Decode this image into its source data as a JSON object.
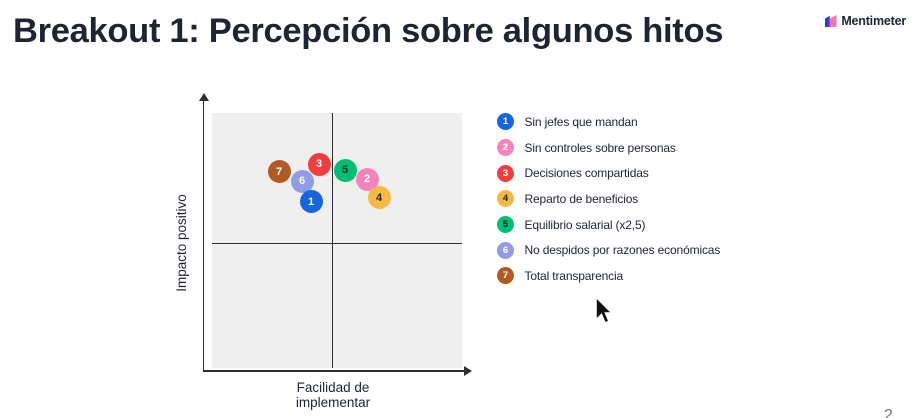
{
  "title": "Breakout 1: Percepción sobre algunos hitos",
  "brand": {
    "name": "Mentimeter"
  },
  "page_number": "2",
  "chart_data": {
    "type": "scatter",
    "title": "Breakout 1: Percepción sobre algunos hitos",
    "xlabel": "Facilidad de implementar",
    "ylabel": "Impacto positivo",
    "xlim": [
      0,
      1
    ],
    "ylim": [
      0,
      1
    ],
    "grid": "quadrant",
    "legend_position": "right",
    "points": [
      {
        "id": 1,
        "label": "Sin jefes que mandan",
        "x": 0.396,
        "y": 0.651,
        "color": "#1665e0",
        "number_color": "#ffffff",
        "z": 4
      },
      {
        "id": 2,
        "label": "Sin controles sobre personas",
        "x": 0.62,
        "y": 0.741,
        "color": "#f584be",
        "number_color": "#ffffff",
        "z": 5
      },
      {
        "id": 3,
        "label": "Decisiones compartidas",
        "x": 0.428,
        "y": 0.8,
        "color": "#f23d3d",
        "number_color": "#ffffff",
        "z": 1
      },
      {
        "id": 4,
        "label": "Reparto de beneficios",
        "x": 0.668,
        "y": 0.667,
        "color": "#f6b944",
        "number_color": "#1f2433",
        "z": 7
      },
      {
        "id": 5,
        "label": "Equilibrio salarial (x2,5)",
        "x": 0.532,
        "y": 0.776,
        "color": "#00bf72",
        "number_color": "#1f2433",
        "z": 6
      },
      {
        "id": 6,
        "label": "No despidos por razones económicas",
        "x": 0.36,
        "y": 0.733,
        "color": "#8f9de8",
        "number_color": "#ffffff",
        "z": 3
      },
      {
        "id": 7,
        "label": "Total transparencia",
        "x": 0.268,
        "y": 0.769,
        "color": "#af5b22",
        "number_color": "#ffffff",
        "z": 2
      }
    ]
  }
}
